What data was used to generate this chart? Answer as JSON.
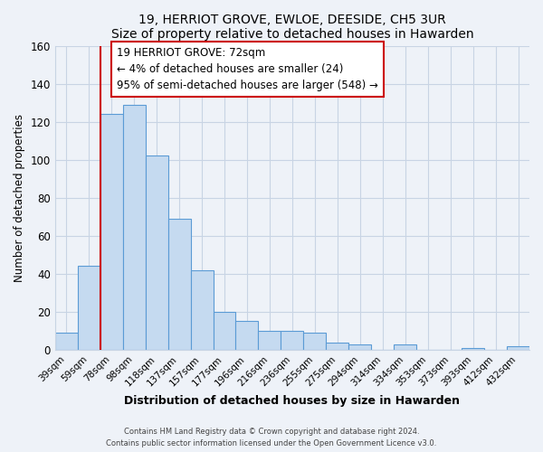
{
  "title": "19, HERRIOT GROVE, EWLOE, DEESIDE, CH5 3UR",
  "subtitle": "Size of property relative to detached houses in Hawarden",
  "xlabel": "Distribution of detached houses by size in Hawarden",
  "ylabel": "Number of detached properties",
  "categories": [
    "39sqm",
    "59sqm",
    "78sqm",
    "98sqm",
    "118sqm",
    "137sqm",
    "157sqm",
    "177sqm",
    "196sqm",
    "216sqm",
    "236sqm",
    "255sqm",
    "275sqm",
    "294sqm",
    "314sqm",
    "334sqm",
    "353sqm",
    "373sqm",
    "393sqm",
    "412sqm",
    "432sqm"
  ],
  "values": [
    9,
    44,
    124,
    129,
    102,
    69,
    42,
    20,
    15,
    10,
    10,
    9,
    4,
    3,
    0,
    3,
    0,
    0,
    1,
    0,
    2
  ],
  "bar_color": "#c5daf0",
  "bar_edge_color": "#5b9bd5",
  "highlight_line_color": "#cc0000",
  "annotation_text": "19 HERRIOT GROVE: 72sqm\n← 4% of detached houses are smaller (24)\n95% of semi-detached houses are larger (548) →",
  "annotation_box_color": "#ffffff",
  "annotation_box_edge_color": "#cc0000",
  "ylim": [
    0,
    160
  ],
  "yticks": [
    0,
    20,
    40,
    60,
    80,
    100,
    120,
    140,
    160
  ],
  "footer1": "Contains HM Land Registry data © Crown copyright and database right 2024.",
  "footer2": "Contains public sector information licensed under the Open Government Licence v3.0.",
  "background_color": "#eef2f8",
  "plot_background_color": "#eef2f8",
  "grid_color": "#c8d4e4"
}
